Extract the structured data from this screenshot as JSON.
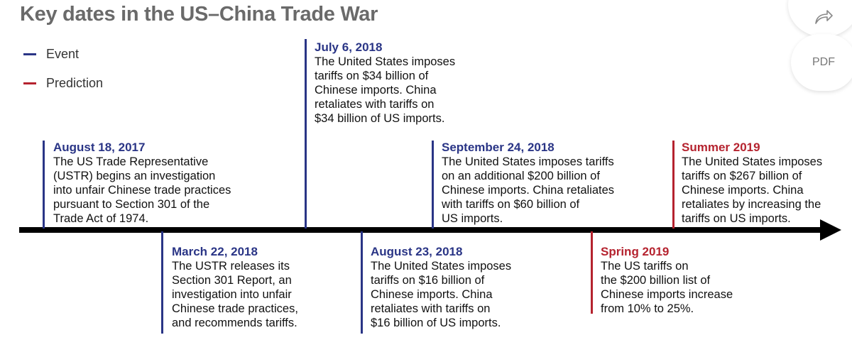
{
  "title": "Key dates in the US–China Trade War",
  "legend": [
    {
      "label": "Event",
      "color": "#2a3586"
    },
    {
      "label": "Prediction",
      "color": "#b5232f"
    }
  ],
  "toolbar": {
    "share_icon": "share-arrow-icon",
    "pdf_label": "PDF"
  },
  "events": [
    {
      "date": "August 18, 2017",
      "type": "event",
      "text": "The US Trade Representative\n(USTR) begins an investigation\ninto unfair Chinese trade practices\npursuant to Section 301 of the\nTrade Act of 1974."
    },
    {
      "date": "March 22, 2018",
      "type": "event",
      "text": "The USTR releases its\nSection 301 Report, an\ninvestigation into unfair\nChinese trade practices,\nand recommends tariffs."
    },
    {
      "date": "July 6, 2018",
      "type": "event",
      "text": "The United States imposes\ntariffs on $34 billion of\nChinese imports. China\nretaliates with tariffs on\n$34 billion of US imports."
    },
    {
      "date": "August 23, 2018",
      "type": "event",
      "text": "The United States imposes\ntariffs on $16 billion of\nChinese imports. China\nretaliates with tariffs on\n$16 billion of US imports."
    },
    {
      "date": "September 24, 2018",
      "type": "event",
      "text": "The United States imposes tariffs\non an additional $200 billion of\nChinese imports. China retaliates\nwith tariffs on $60 billion of\nUS imports."
    },
    {
      "date": "Spring 2019",
      "type": "prediction",
      "text": "The US tariffs on\nthe $200 billion list of\nChinese imports increase\nfrom 10% to 25%."
    },
    {
      "date": "Summer 2019",
      "type": "prediction",
      "text": "The United States imposes\ntariffs on $267 billion of\nChinese imports. China\nretaliates by increasing the\ntariffs on US imports."
    }
  ]
}
